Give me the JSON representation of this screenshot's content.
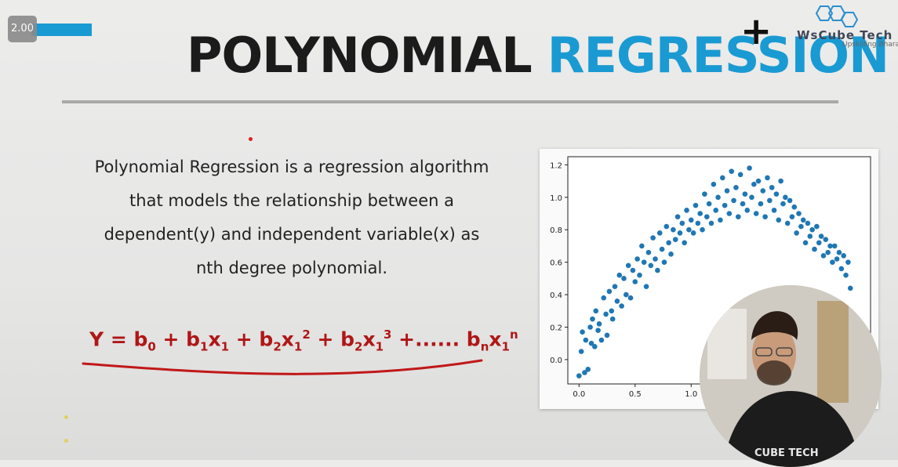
{
  "player": {
    "speed_label": "2.00"
  },
  "slide": {
    "title_word1": "POLYNOMIAL",
    "title_word2": "REGRESSION",
    "plus": "+",
    "logo": {
      "name": "WsCube Tech",
      "tagline": "Upskilling Bharat"
    },
    "description_lines": [
      "Polynomial Regression is a regression algorithm",
      "that models the relationship between a",
      "dependent(y) and independent variable(x) as",
      "nth degree polynomial."
    ],
    "formula": {
      "lhs": "Y",
      "terms": [
        "b0",
        "b1x1",
        "b2x1^2",
        "b2x1^3",
        "...... bnx1^n"
      ]
    }
  },
  "webcam": {
    "shirt_text": "CUBE TECH"
  },
  "chart_data": {
    "type": "scatter",
    "x_ticks": [
      "0.0",
      "0.5",
      "1.0"
    ],
    "y_ticks": [
      "1.2",
      "1.0",
      "0.8",
      "0.6",
      "0.4",
      "0.2",
      "0.0"
    ],
    "xlim": [
      -0.1,
      2.6
    ],
    "ylim": [
      -0.15,
      1.25
    ],
    "color": "#1f77b4",
    "points": [
      [
        0.0,
        -0.1
      ],
      [
        0.02,
        0.05
      ],
      [
        0.03,
        0.17
      ],
      [
        0.05,
        -0.08
      ],
      [
        0.06,
        0.12
      ],
      [
        0.08,
        -0.06
      ],
      [
        0.1,
        0.2
      ],
      [
        0.11,
        0.1
      ],
      [
        0.12,
        0.25
      ],
      [
        0.14,
        0.08
      ],
      [
        0.15,
        0.3
      ],
      [
        0.17,
        0.18
      ],
      [
        0.18,
        0.22
      ],
      [
        0.2,
        0.12
      ],
      [
        0.22,
        0.38
      ],
      [
        0.24,
        0.28
      ],
      [
        0.25,
        0.15
      ],
      [
        0.27,
        0.42
      ],
      [
        0.29,
        0.3
      ],
      [
        0.3,
        0.25
      ],
      [
        0.32,
        0.45
      ],
      [
        0.34,
        0.36
      ],
      [
        0.36,
        0.52
      ],
      [
        0.38,
        0.33
      ],
      [
        0.4,
        0.5
      ],
      [
        0.42,
        0.4
      ],
      [
        0.44,
        0.58
      ],
      [
        0.46,
        0.38
      ],
      [
        0.48,
        0.55
      ],
      [
        0.5,
        0.48
      ],
      [
        0.52,
        0.62
      ],
      [
        0.54,
        0.52
      ],
      [
        0.56,
        0.7
      ],
      [
        0.58,
        0.6
      ],
      [
        0.6,
        0.45
      ],
      [
        0.62,
        0.66
      ],
      [
        0.64,
        0.58
      ],
      [
        0.66,
        0.75
      ],
      [
        0.68,
        0.62
      ],
      [
        0.7,
        0.55
      ],
      [
        0.72,
        0.78
      ],
      [
        0.74,
        0.68
      ],
      [
        0.76,
        0.6
      ],
      [
        0.78,
        0.82
      ],
      [
        0.8,
        0.72
      ],
      [
        0.82,
        0.65
      ],
      [
        0.84,
        0.8
      ],
      [
        0.86,
        0.74
      ],
      [
        0.88,
        0.88
      ],
      [
        0.9,
        0.78
      ],
      [
        0.92,
        0.84
      ],
      [
        0.94,
        0.72
      ],
      [
        0.96,
        0.92
      ],
      [
        0.98,
        0.8
      ],
      [
        1.0,
        0.86
      ],
      [
        1.02,
        0.78
      ],
      [
        1.04,
        0.95
      ],
      [
        1.06,
        0.84
      ],
      [
        1.08,
        0.9
      ],
      [
        1.1,
        0.8
      ],
      [
        1.12,
        1.02
      ],
      [
        1.14,
        0.88
      ],
      [
        1.16,
        0.96
      ],
      [
        1.18,
        0.84
      ],
      [
        1.2,
        1.08
      ],
      [
        1.22,
        0.92
      ],
      [
        1.24,
        1.0
      ],
      [
        1.26,
        0.86
      ],
      [
        1.28,
        1.12
      ],
      [
        1.3,
        0.95
      ],
      [
        1.32,
        1.04
      ],
      [
        1.34,
        0.9
      ],
      [
        1.36,
        1.16
      ],
      [
        1.38,
        0.98
      ],
      [
        1.4,
        1.06
      ],
      [
        1.42,
        0.88
      ],
      [
        1.44,
        1.14
      ],
      [
        1.46,
        0.96
      ],
      [
        1.48,
        1.02
      ],
      [
        1.5,
        0.92
      ],
      [
        1.52,
        1.18
      ],
      [
        1.54,
        1.0
      ],
      [
        1.56,
        1.08
      ],
      [
        1.58,
        0.9
      ],
      [
        1.6,
        1.1
      ],
      [
        1.62,
        0.96
      ],
      [
        1.64,
        1.04
      ],
      [
        1.66,
        0.88
      ],
      [
        1.68,
        1.12
      ],
      [
        1.7,
        0.98
      ],
      [
        1.72,
        1.06
      ],
      [
        1.74,
        0.92
      ],
      [
        1.76,
        1.02
      ],
      [
        1.78,
        0.86
      ],
      [
        1.8,
        1.1
      ],
      [
        1.82,
        0.96
      ],
      [
        1.84,
        1.0
      ],
      [
        1.86,
        0.84
      ],
      [
        1.88,
        0.98
      ],
      [
        1.9,
        0.88
      ],
      [
        1.92,
        0.94
      ],
      [
        1.94,
        0.78
      ],
      [
        1.96,
        0.9
      ],
      [
        1.98,
        0.82
      ],
      [
        2.0,
        0.86
      ],
      [
        2.02,
        0.72
      ],
      [
        2.04,
        0.84
      ],
      [
        2.06,
        0.76
      ],
      [
        2.08,
        0.8
      ],
      [
        2.1,
        0.68
      ],
      [
        2.12,
        0.82
      ],
      [
        2.14,
        0.72
      ],
      [
        2.16,
        0.76
      ],
      [
        2.18,
        0.64
      ],
      [
        2.2,
        0.74
      ],
      [
        2.22,
        0.66
      ],
      [
        2.24,
        0.7
      ],
      [
        2.26,
        0.6
      ],
      [
        2.28,
        0.7
      ],
      [
        2.3,
        0.62
      ],
      [
        2.32,
        0.66
      ],
      [
        2.34,
        0.56
      ],
      [
        2.36,
        0.64
      ],
      [
        2.38,
        0.52
      ],
      [
        2.4,
        0.6
      ],
      [
        2.42,
        0.44
      ]
    ]
  }
}
